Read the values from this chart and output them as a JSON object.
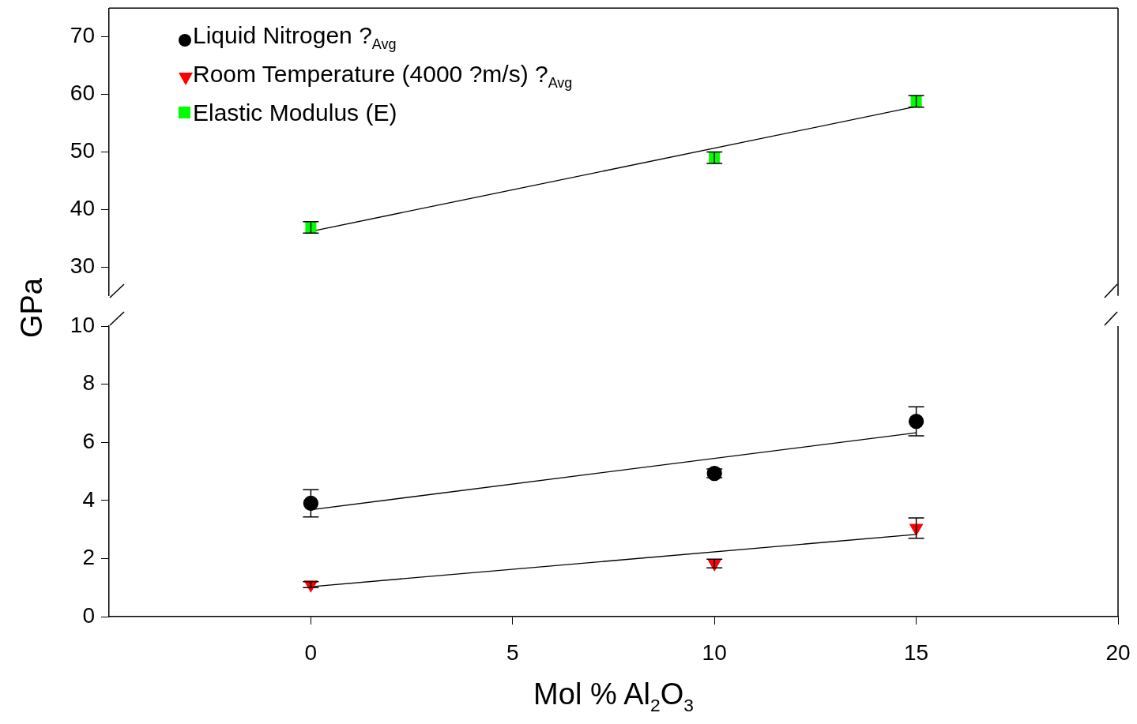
{
  "chart_data": [
    {
      "type": "scatter",
      "ylabel": "GPa",
      "legend": "top left",
      "grid": false,
      "tick_labels": "y",
      "xlim": [
        -5,
        20
      ],
      "xticks": [
        0,
        5,
        10,
        15,
        20
      ],
      "ylim": [
        25,
        75
      ],
      "yticks": [
        30,
        40,
        50,
        60,
        70
      ],
      "series": [
        {
          "name": "Elastic Modulus (E)",
          "color": "#00ff00",
          "marker": "square",
          "x": [
            0,
            10,
            15
          ],
          "values": [
            36.9,
            49.0,
            58.8
          ],
          "errors": [
            1,
            1,
            1
          ]
        },
        {
          "type": "line",
          "color": "#000000",
          "marker": "none",
          "x": [
            0,
            15
          ],
          "values": [
            36.2,
            57.9
          ]
        }
      ]
    },
    {
      "type": "scatter",
      "xlabel": "Mol % Al$_{2}$O$_{3}$",
      "grid": false,
      "xlim": [
        -5,
        20
      ],
      "xticks": [
        0,
        5,
        10,
        15,
        20
      ],
      "ylim": [
        0,
        10
      ],
      "yticks": [
        0,
        2,
        4,
        6,
        8,
        10
      ],
      "series": [
        {
          "name": "Liquid Nitrogen ?$_{Avg}$",
          "color": "#000000",
          "marker": "circle",
          "x": [
            0,
            10,
            15
          ],
          "values": [
            3.9,
            4.93,
            6.72
          ],
          "errors": [
            0.47,
            0.15,
            0.5
          ]
        },
        {
          "name": "Room Temperature (4000 ?m/s) ?$_{Avg}$",
          "color": "#ff0000",
          "marker": "triangle",
          "x": [
            0,
            10,
            15
          ],
          "values": [
            1.1,
            1.83,
            3.05
          ],
          "errors": [
            0.1,
            0.15,
            0.35
          ]
        },
        {
          "type": "line",
          "color": "#000000",
          "marker": "none",
          "x": [
            0,
            15
          ],
          "values": [
            3.68,
            6.33
          ]
        },
        {
          "type": "line",
          "color": "#000000",
          "marker": "none",
          "x": [
            0,
            15
          ],
          "values": [
            1.03,
            2.83
          ]
        }
      ]
    }
  ]
}
